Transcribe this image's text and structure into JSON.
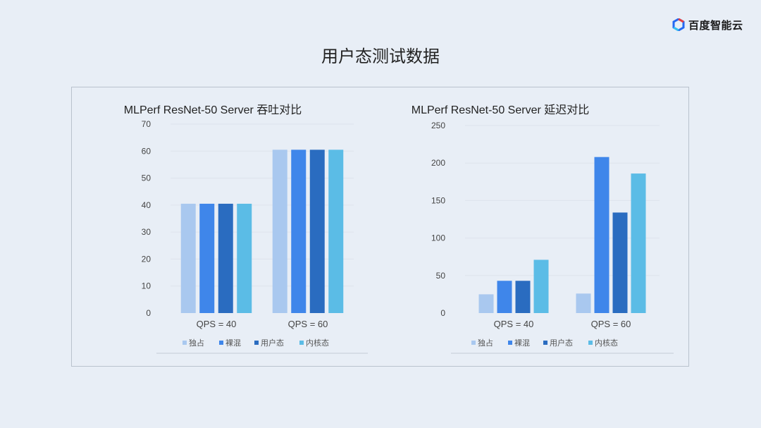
{
  "page": {
    "title": "用户态测试数据",
    "logo_text": "百度智能云",
    "logo_icon": "baidu-cloud-logo-icon"
  },
  "chart_data": [
    {
      "type": "bar",
      "title": "MLPerf ResNet-50 Server 吞吐对比",
      "xlabel": "",
      "ylabel": "",
      "categories": [
        "QPS = 40",
        "QPS = 60"
      ],
      "ylim": [
        0,
        70
      ],
      "yticks": [
        "0",
        "10",
        "20",
        "30",
        "40",
        "50",
        "60",
        "70"
      ],
      "legend_position": "bottom",
      "grid": true,
      "series": [
        {
          "name": "独占",
          "color": "#a9c8ef",
          "values": [
            40.5,
            60.5
          ]
        },
        {
          "name": "裸混",
          "color": "#3f86ea",
          "values": [
            40.5,
            60.5
          ]
        },
        {
          "name": "用户态",
          "color": "#2a6cc0",
          "values": [
            40.5,
            60.5
          ]
        },
        {
          "name": "内核态",
          "color": "#5bbce6",
          "values": [
            40.5,
            60.5
          ]
        }
      ]
    },
    {
      "type": "bar",
      "title": "MLPerf ResNet-50 Server 延迟对比",
      "xlabel": "",
      "ylabel": "",
      "categories": [
        "QPS = 40",
        "QPS = 60"
      ],
      "ylim": [
        0,
        250
      ],
      "yticks": [
        "0",
        "50",
        "100",
        "150",
        "200",
        "250"
      ],
      "legend_position": "bottom",
      "grid": true,
      "series": [
        {
          "name": "独占",
          "color": "#a9c8ef",
          "values": [
            25,
            26
          ]
        },
        {
          "name": "裸混",
          "color": "#3f86ea",
          "values": [
            43,
            208
          ]
        },
        {
          "name": "用户态",
          "color": "#2a6cc0",
          "values": [
            43,
            134
          ]
        },
        {
          "name": "内核态",
          "color": "#5bbce6",
          "values": [
            71,
            186
          ]
        }
      ]
    }
  ]
}
